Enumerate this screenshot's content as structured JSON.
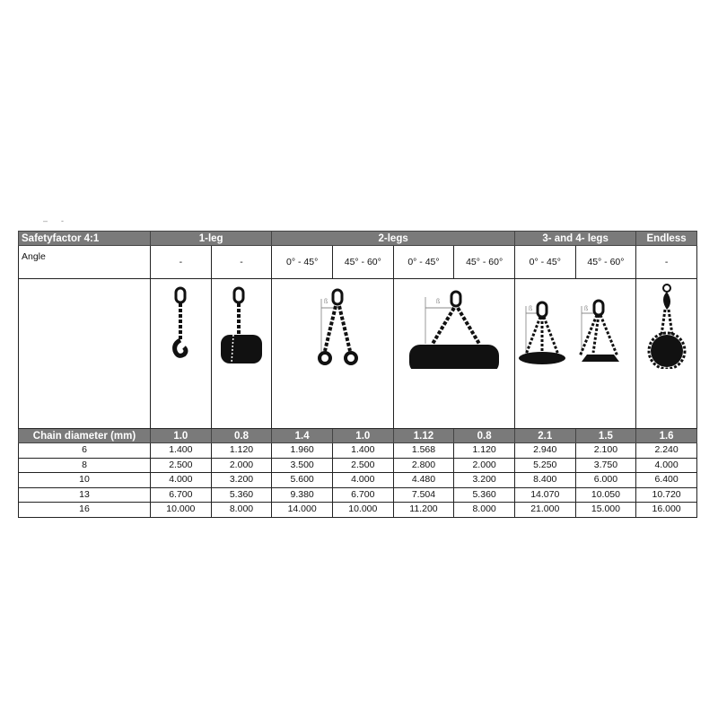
{
  "title_row": {
    "label": "Safetyfactor 4:1",
    "groups": [
      "1-leg",
      "2-legs",
      "3- and 4- legs",
      "Endless"
    ]
  },
  "angle_row": {
    "label": "Angle",
    "values": [
      "-",
      "-",
      "0° - 45°",
      "45° - 60°",
      "0° - 45°",
      "45° - 60°",
      "0° - 45°",
      "45° - 60°",
      "-"
    ]
  },
  "diagrams": {
    "angle_symbol": "ß",
    "icons": [
      "single-leg-hook-icon",
      "single-leg-choke-cylinder-icon",
      "two-leg-hooks-icon",
      "two-leg-cylinder-icon",
      "three-four-leg-load-icon",
      "endless-chain-icon"
    ]
  },
  "factor_row": {
    "label": "Chain diameter (mm)",
    "values": [
      "1.0",
      "0.8",
      "1.4",
      "1.0",
      "1.12",
      "0.8",
      "2.1",
      "1.5",
      "1.6"
    ]
  },
  "rows": [
    {
      "d": "6",
      "v": [
        "1.400",
        "1.120",
        "1.960",
        "1.400",
        "1.568",
        "1.120",
        "2.940",
        "2.100",
        "2.240"
      ]
    },
    {
      "d": "8",
      "v": [
        "2.500",
        "2.000",
        "3.500",
        "2.500",
        "2.800",
        "2.000",
        "5.250",
        "3.750",
        "4.000"
      ]
    },
    {
      "d": "10",
      "v": [
        "4.000",
        "3.200",
        "5.600",
        "4.000",
        "4.480",
        "3.200",
        "8.400",
        "6.000",
        "6.400"
      ]
    },
    {
      "d": "13",
      "v": [
        "6.700",
        "5.360",
        "9.380",
        "6.700",
        "7.504",
        "5.360",
        "14.070",
        "10.050",
        "10.720"
      ]
    },
    {
      "d": "16",
      "v": [
        "10.000",
        "8.000",
        "14.000",
        "10.000",
        "11.200",
        "8.000",
        "21.000",
        "15.000",
        "16.000"
      ]
    }
  ],
  "colors": {
    "header_bg": "#7a7a7a",
    "header_text": "#ffffff"
  }
}
